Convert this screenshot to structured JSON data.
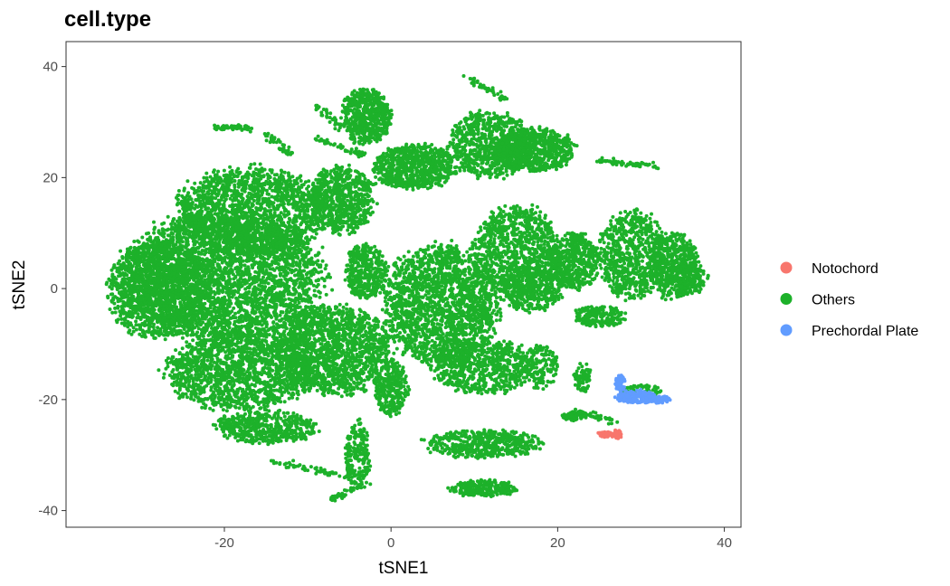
{
  "chart_data": {
    "type": "scatter",
    "title": "cell.type",
    "xlabel": "tSNE1",
    "ylabel": "tSNE2",
    "xlim": [
      -39,
      42
    ],
    "ylim": [
      -43,
      44.5
    ],
    "x_ticks": [
      -20,
      0,
      20,
      40
    ],
    "y_ticks": [
      -40,
      -20,
      0,
      20,
      40
    ],
    "x_tick_labels": [
      "-20",
      "0",
      "20",
      "40"
    ],
    "y_tick_labels": [
      "-40",
      "-20",
      "0",
      "20",
      "40"
    ],
    "grid": false,
    "legend_position": "right",
    "series": [
      {
        "name": "Notochord",
        "color": "#F8766D",
        "clusters": [
          {
            "cx": 26.3,
            "cy": -26.3,
            "rx": 1.6,
            "ry": 0.5,
            "n": 40
          },
          {
            "cx": 27.2,
            "cy": -26.3,
            "rx": 0.5,
            "ry": 0.9,
            "n": 25
          }
        ]
      },
      {
        "name": "Others",
        "color": "#1DB12A",
        "clusters": [
          {
            "cx": -20,
            "cy": 2,
            "rx": 12,
            "ry": 12,
            "n": 3200
          },
          {
            "cx": -28,
            "cy": 0,
            "rx": 6,
            "ry": 9,
            "n": 1200
          },
          {
            "cx": -17,
            "cy": 14,
            "rx": 9,
            "ry": 8,
            "n": 1600
          },
          {
            "cx": -6,
            "cy": 16,
            "rx": 4,
            "ry": 6,
            "n": 700
          },
          {
            "cx": -7,
            "cy": -11,
            "rx": 7,
            "ry": 8,
            "n": 1500
          },
          {
            "cx": -18,
            "cy": -15,
            "rx": 9,
            "ry": 7,
            "n": 1400
          },
          {
            "cx": -15,
            "cy": -25,
            "rx": 6,
            "ry": 3,
            "n": 500
          },
          {
            "cx": -3,
            "cy": 3,
            "rx": 2.5,
            "ry": 5,
            "n": 400
          },
          {
            "cx": 6,
            "cy": -3,
            "rx": 7,
            "ry": 11,
            "n": 1800
          },
          {
            "cx": 0,
            "cy": -18,
            "rx": 2,
            "ry": 5,
            "n": 300
          },
          {
            "cx": 11,
            "cy": -14,
            "rx": 6,
            "ry": 5,
            "n": 700
          },
          {
            "cx": -3,
            "cy": 31,
            "rx": 3,
            "ry": 5,
            "n": 600
          },
          {
            "cx": 3,
            "cy": 22,
            "rx": 5,
            "ry": 4,
            "n": 700
          },
          {
            "cx": 12,
            "cy": 26,
            "rx": 5,
            "ry": 6,
            "n": 800
          },
          {
            "cx": 17,
            "cy": 25,
            "rx": 5,
            "ry": 4,
            "n": 700
          },
          {
            "cx": 15,
            "cy": 7,
            "rx": 5,
            "ry": 8,
            "n": 900
          },
          {
            "cx": 22,
            "cy": 5,
            "rx": 3,
            "ry": 5,
            "n": 500
          },
          {
            "cx": 29,
            "cy": 6,
            "rx": 4,
            "ry": 8,
            "n": 700
          },
          {
            "cx": 34,
            "cy": 4,
            "rx": 3,
            "ry": 6,
            "n": 500
          },
          {
            "cx": 11,
            "cy": -28,
            "rx": 7,
            "ry": 2.5,
            "n": 500
          },
          {
            "cx": 11,
            "cy": -36,
            "rx": 4,
            "ry": 1.5,
            "n": 250
          },
          {
            "cx": 17,
            "cy": 0,
            "rx": 4,
            "ry": 4,
            "n": 400
          },
          {
            "cx": 25,
            "cy": -5,
            "rx": 3,
            "ry": 2,
            "n": 200
          },
          {
            "cx": 36,
            "cy": 2,
            "rx": 2,
            "ry": 3,
            "n": 150
          },
          {
            "cx": -4,
            "cy": -30,
            "rx": 1.5,
            "ry": 6,
            "n": 200
          },
          {
            "cx": 30,
            "cy": -18.5,
            "rx": 2.5,
            "ry": 1.2,
            "n": 60
          },
          {
            "cx": 22,
            "cy": -23,
            "rx": 1.5,
            "ry": 0.8,
            "n": 60
          },
          {
            "cx": 18,
            "cy": -14,
            "rx": 2,
            "ry": 4,
            "n": 150
          },
          {
            "cx": 23,
            "cy": -16,
            "rx": 1,
            "ry": 3,
            "n": 80
          }
        ],
        "strands": [
          {
            "x": [
              -21,
              -17
            ],
            "y": [
              29,
              29
            ],
            "n": 60
          },
          {
            "x": [
              -15,
              -12
            ],
            "y": [
              28,
              24
            ],
            "n": 40
          },
          {
            "x": [
              -9,
              -3
            ],
            "y": [
              27,
              24
            ],
            "n": 50
          },
          {
            "x": [
              -9,
              -6
            ],
            "y": [
              33,
              29
            ],
            "n": 30
          },
          {
            "x": [
              -4,
              3
            ],
            "y": [
              19,
              19
            ],
            "n": 50
          },
          {
            "x": [
              9,
              14
            ],
            "y": [
              38,
              34
            ],
            "n": 50
          },
          {
            "x": [
              25,
              32
            ],
            "y": [
              23,
              22
            ],
            "n": 60
          },
          {
            "x": [
              -15,
              -5
            ],
            "y": [
              -31,
              -34
            ],
            "n": 60
          },
          {
            "x": [
              -7,
              -3
            ],
            "y": [
              -38,
              -35
            ],
            "n": 40
          },
          {
            "x": [
              22,
              27
            ],
            "y": [
              -22,
              -24
            ],
            "n": 40
          }
        ]
      },
      {
        "name": "Prechordal Plate",
        "color": "#619CFF",
        "clusters": [
          {
            "cx": 29.5,
            "cy": -19.5,
            "rx": 2.5,
            "ry": 1.2,
            "n": 160
          },
          {
            "cx": 32,
            "cy": -20,
            "rx": 1.5,
            "ry": 0.7,
            "n": 60
          },
          {
            "cx": 27.5,
            "cy": -17,
            "rx": 0.6,
            "ry": 1.5,
            "n": 50
          }
        ]
      }
    ]
  }
}
